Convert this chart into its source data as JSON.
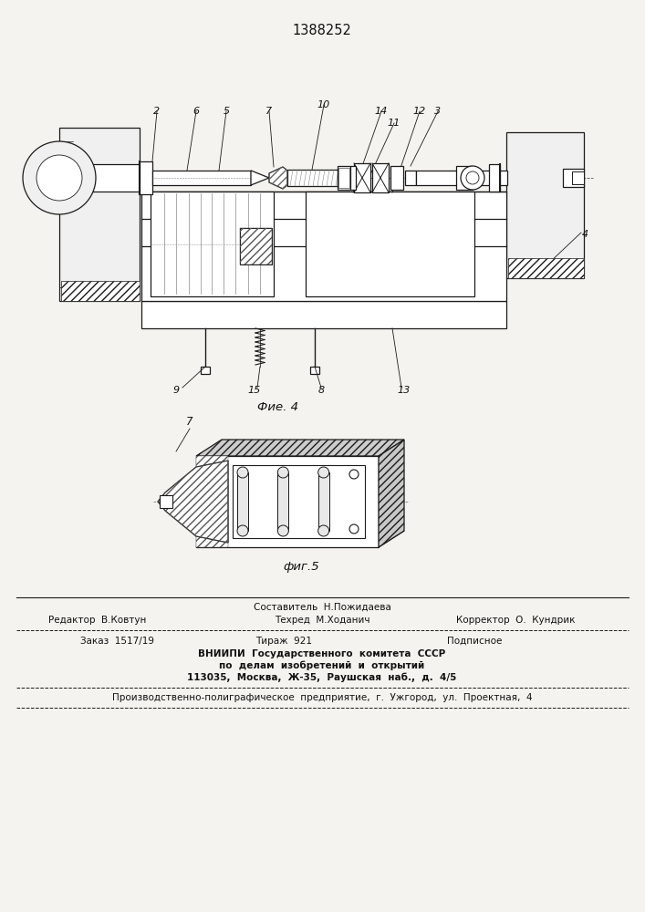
{
  "title": "1388252",
  "bg_color": "#f5f3f0",
  "fig4_caption": "Фие. 4",
  "fig5_caption": "фиг.5",
  "footer_line0_center": "Составитель  Н.Пожидаева",
  "footer_line1_left": "Редактор  В.Ковтун",
  "footer_line1_center": "Техред  М.Ходанич",
  "footer_line1_right": "Корректор  О.  Кундрик",
  "footer_line2_left": "Заказ  1517/19",
  "footer_line2_center": "Тираж  921",
  "footer_line2_right": "Подписное",
  "footer_line3": "ВНИИПИ  Государственного  комитета  СССР",
  "footer_line4": "по  делам  изобретений  и  открытий",
  "footer_line5": "113035,  Москва,  Ж-35,  Раушская  наб.,  д.  4/5",
  "footer_line6": "Производственно-полиграфическое  предприятие,  г.  Ужгород,  ул.  Проектная,  4",
  "line_color": "#1a1a1a"
}
